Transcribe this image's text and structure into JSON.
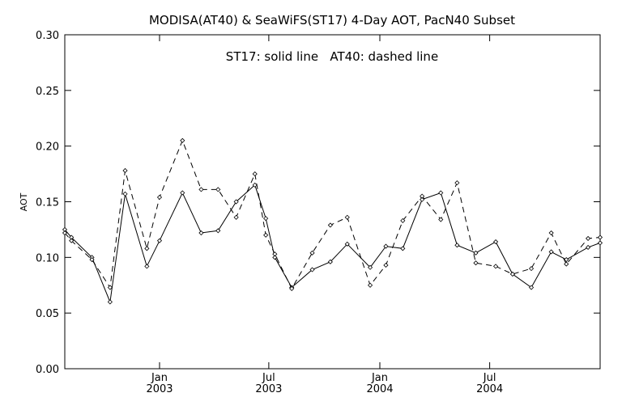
{
  "chart_data": {
    "type": "line",
    "title": "MODISA(AT40) & SeaWiFS(ST17) 4-Day AOT, PacN40 Subset",
    "annotation": "ST17: solid line   AT40: dashed line",
    "xlabel": "",
    "ylabel": "AOT",
    "xlim": [
      "2002-07-28",
      "2004-12-31"
    ],
    "ylim": [
      0,
      0.3
    ],
    "y_ticks": [
      "0.00",
      "0.05",
      "0.10",
      "0.15",
      "0.20",
      "0.25",
      "0.30"
    ],
    "y_tick_values": [
      0,
      0.05,
      0.1,
      0.15,
      0.2,
      0.25,
      0.3
    ],
    "x_ticks": [
      {
        "date": "2003-01-01",
        "line1": "Jan",
        "line2": "2003"
      },
      {
        "date": "2003-07-01",
        "line1": "Jul",
        "line2": "2003"
      },
      {
        "date": "2004-01-01",
        "line1": "Jan",
        "line2": "2004"
      },
      {
        "date": "2004-07-01",
        "line1": "Jul",
        "line2": "2004"
      }
    ],
    "grid": false,
    "series": [
      {
        "name": "ST17",
        "style": "solid",
        "x": [
          "2002-07-28",
          "2002-08-08",
          "2002-09-11",
          "2002-10-11",
          "2002-11-05",
          "2002-12-11",
          "2003-01-01",
          "2003-02-08",
          "2003-03-11",
          "2003-04-08",
          "2003-05-08",
          "2003-06-08",
          "2003-06-26",
          "2003-07-11",
          "2003-08-08",
          "2003-09-11",
          "2003-10-11",
          "2003-11-08",
          "2003-12-16",
          "2004-01-11",
          "2004-02-08",
          "2004-03-11",
          "2004-04-11",
          "2004-05-08",
          "2004-06-08",
          "2004-07-11",
          "2004-08-08",
          "2004-09-08",
          "2004-10-11",
          "2004-11-05",
          "2004-12-11",
          "2004-12-31"
        ],
        "values": [
          0.125,
          0.118,
          0.1,
          0.06,
          0.157,
          0.092,
          0.115,
          0.158,
          0.122,
          0.124,
          0.15,
          0.165,
          0.135,
          0.1,
          0.073,
          0.089,
          0.096,
          0.112,
          0.091,
          0.11,
          0.108,
          0.152,
          0.158,
          0.111,
          0.104,
          0.114,
          0.085,
          0.073,
          0.105,
          0.098,
          0.109,
          0.113
        ]
      },
      {
        "name": "AT40",
        "style": "dashed",
        "x": [
          "2002-07-28",
          "2002-08-08",
          "2002-09-11",
          "2002-10-11",
          "2002-11-05",
          "2002-12-11",
          "2003-01-01",
          "2003-02-08",
          "2003-03-11",
          "2003-04-08",
          "2003-05-08",
          "2003-06-08",
          "2003-06-26",
          "2003-07-11",
          "2003-08-08",
          "2003-09-11",
          "2003-10-11",
          "2003-11-08",
          "2003-12-16",
          "2004-01-11",
          "2004-02-08",
          "2004-03-11",
          "2004-04-11",
          "2004-05-08",
          "2004-06-08",
          "2004-07-11",
          "2004-08-08",
          "2004-09-08",
          "2004-10-11",
          "2004-11-05",
          "2004-12-11",
          "2004-12-31"
        ],
        "values": [
          0.122,
          0.115,
          0.098,
          0.073,
          0.178,
          0.108,
          0.154,
          0.205,
          0.161,
          0.161,
          0.136,
          0.175,
          0.12,
          0.103,
          0.072,
          0.104,
          0.129,
          0.136,
          0.075,
          0.093,
          0.133,
          0.155,
          0.134,
          0.167,
          0.095,
          0.092,
          0.085,
          0.09,
          0.122,
          0.094,
          0.117,
          0.118
        ]
      }
    ]
  }
}
